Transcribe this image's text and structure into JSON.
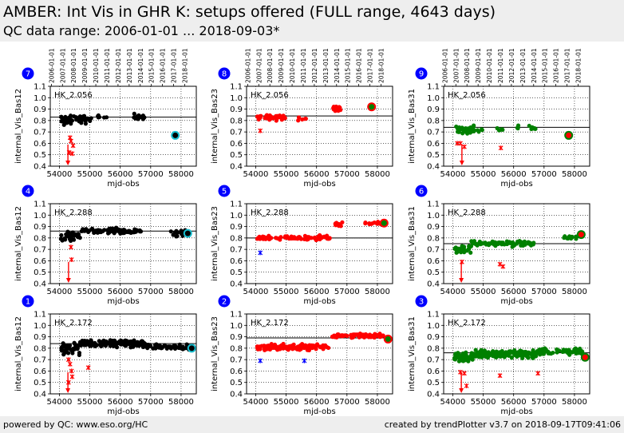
{
  "header": {
    "title": "AMBER: Int Vis in GHR K: setups offered (FULL range, 4643 days)",
    "subtitle": "QC data range: 2006-01-01 ... 2018-09-03*"
  },
  "footer": {
    "left": "powered by QC: www.eso.org/HC",
    "right": "created by trendPlotter v3.7 on 2018-09-17T09:41:06"
  },
  "colors": {
    "header_bg": "#eeeeee",
    "badge": "#0000ff",
    "base12": "#000000",
    "base23": "#ff0000",
    "base31": "#008000",
    "cyan_marker": "#17becf",
    "outlier_red": "#ff0000",
    "outlier_blue": "#0000ff"
  },
  "chart_data": {
    "type": "scatter",
    "x_label": "mjd-obs",
    "x_ticks": [
      54000,
      55000,
      56000,
      57000,
      58000
    ],
    "xlim": [
      53700,
      58500
    ],
    "ylim": [
      0.4,
      1.1
    ],
    "y_ticks": [
      "0.4",
      "0.5",
      "0.6",
      "0.7",
      "0.8",
      "0.9",
      "1.0",
      "1.1"
    ],
    "date_ticks": [
      {
        "label": "2006-01-01",
        "mjd": 53736
      },
      {
        "label": "2007-01-01",
        "mjd": 54101
      },
      {
        "label": "2008-01-01",
        "mjd": 54466
      },
      {
        "label": "2009-01-01",
        "mjd": 54832
      },
      {
        "label": "2010-01-01",
        "mjd": 55197
      },
      {
        "label": "2011-01-01",
        "mjd": 55562
      },
      {
        "label": "2012-01-01",
        "mjd": 55927
      },
      {
        "label": "2013-01-01",
        "mjd": 56293
      },
      {
        "label": "2014-01-01",
        "mjd": 56658
      },
      {
        "label": "2015-01-01",
        "mjd": 57023
      },
      {
        "label": "2016-01-01",
        "mjd": 57388
      },
      {
        "label": "2017-01-01",
        "mjd": 57754
      },
      {
        "label": "2018-01-01",
        "mjd": 58119
      }
    ],
    "grid": true,
    "panels": [
      {
        "row": 0,
        "col": 0,
        "badge": "7",
        "setup": "HK_2.056",
        "ylabel": "internal_Vis_Bas12",
        "color": "#000000",
        "refline": 0.83,
        "clusters": [
          {
            "x0": 54050,
            "x1": 55050,
            "ymid": 0.81,
            "spread": 0.05,
            "n": 60
          },
          {
            "x0": 55250,
            "x1": 55550,
            "ymid": 0.83,
            "spread": 0.02,
            "n": 6
          },
          {
            "x0": 56450,
            "x1": 56800,
            "ymid": 0.83,
            "spread": 0.03,
            "n": 14
          }
        ],
        "outliers": [
          {
            "x": 54350,
            "y": 0.65,
            "c": "#ff0000"
          },
          {
            "x": 54380,
            "y": 0.62,
            "c": "#ff0000"
          },
          {
            "x": 54450,
            "y": 0.58,
            "c": "#ff0000"
          },
          {
            "x": 54320,
            "y": 0.52,
            "c": "#ff0000"
          },
          {
            "x": 54420,
            "y": 0.51,
            "c": "#ff0000"
          }
        ],
        "below": [
          54280
        ],
        "last": {
          "x": 57810,
          "y": 0.67,
          "fill": "#000000",
          "ring": "#17becf"
        }
      },
      {
        "row": 0,
        "col": 1,
        "badge": "8",
        "setup": "HK_2.056",
        "ylabel": "internal_Vis_Bas23",
        "color": "#ff0000",
        "refline": 0.84,
        "clusters": [
          {
            "x0": 54050,
            "x1": 55000,
            "ymid": 0.83,
            "spread": 0.035,
            "n": 45
          },
          {
            "x0": 55350,
            "x1": 55650,
            "ymid": 0.81,
            "spread": 0.02,
            "n": 5
          },
          {
            "x0": 56550,
            "x1": 56800,
            "ymid": 0.9,
            "spread": 0.03,
            "n": 14
          }
        ],
        "outliers": [
          {
            "x": 54150,
            "y": 0.71,
            "c": "#ff0000"
          }
        ],
        "below": [],
        "last": {
          "x": 57810,
          "y": 0.92,
          "fill": "#008000",
          "ring": "#ff0000"
        }
      },
      {
        "row": 0,
        "col": 2,
        "badge": "9",
        "setup": "HK_2.056",
        "ylabel": "internal_Vis_Bas31",
        "color": "#008000",
        "refline": 0.74,
        "clusters": [
          {
            "x0": 54050,
            "x1": 55000,
            "ymid": 0.72,
            "spread": 0.04,
            "n": 40
          },
          {
            "x0": 55400,
            "x1": 55650,
            "ymid": 0.72,
            "spread": 0.02,
            "n": 5
          },
          {
            "x0": 56100,
            "x1": 56200,
            "ymid": 0.75,
            "spread": 0.02,
            "n": 3
          },
          {
            "x0": 56500,
            "x1": 56750,
            "ymid": 0.74,
            "spread": 0.03,
            "n": 8
          }
        ],
        "outliers": [
          {
            "x": 54150,
            "y": 0.6,
            "c": "#ff0000"
          },
          {
            "x": 54250,
            "y": 0.6,
            "c": "#ff0000"
          },
          {
            "x": 54380,
            "y": 0.57,
            "c": "#ff0000"
          },
          {
            "x": 55580,
            "y": 0.56,
            "c": "#ff0000"
          }
        ],
        "below": [
          54300
        ],
        "last": {
          "x": 57810,
          "y": 0.67,
          "fill": "#ff0000",
          "ring": "#008000"
        }
      },
      {
        "row": 1,
        "col": 0,
        "badge": "4",
        "setup": "HK_2.288",
        "ylabel": "internal_Vis_Bas12",
        "color": "#000000",
        "refline": 0.86,
        "clusters": [
          {
            "x0": 54050,
            "x1": 54700,
            "ymid": 0.82,
            "spread": 0.05,
            "n": 35
          },
          {
            "x0": 54700,
            "x1": 56700,
            "ymid": 0.86,
            "spread": 0.03,
            "n": 80
          },
          {
            "x0": 57650,
            "x1": 58200,
            "ymid": 0.84,
            "spread": 0.03,
            "n": 18
          }
        ],
        "outliers": [
          {
            "x": 54380,
            "y": 0.72,
            "c": "#ff0000"
          },
          {
            "x": 54400,
            "y": 0.61,
            "c": "#ff0000"
          }
        ],
        "below": [
          54300
        ],
        "last": {
          "x": 58220,
          "y": 0.84,
          "fill": "#000000",
          "ring": "#17becf"
        }
      },
      {
        "row": 1,
        "col": 1,
        "badge": "5",
        "setup": "HK_2.288",
        "ylabel": "internal_Vis_Bas23",
        "color": "#ff0000",
        "refline": 0.8,
        "clusters": [
          {
            "x0": 54050,
            "x1": 55500,
            "ymid": 0.8,
            "spread": 0.02,
            "n": 60
          },
          {
            "x0": 55500,
            "x1": 56500,
            "ymid": 0.8,
            "spread": 0.025,
            "n": 40
          },
          {
            "x0": 56600,
            "x1": 56900,
            "ymid": 0.92,
            "spread": 0.02,
            "n": 10
          },
          {
            "x0": 57600,
            "x1": 58150,
            "ymid": 0.93,
            "spread": 0.015,
            "n": 18
          }
        ],
        "outliers": [
          {
            "x": 54150,
            "y": 0.67,
            "c": "#0000ff"
          }
        ],
        "below": [],
        "last": {
          "x": 58220,
          "y": 0.93,
          "fill": "#008000",
          "ring": "#ff0000"
        }
      },
      {
        "row": 1,
        "col": 2,
        "badge": "6",
        "setup": "HK_2.288",
        "ylabel": "internal_Vis_Bas31",
        "color": "#008000",
        "refline": 0.75,
        "clusters": [
          {
            "x0": 54050,
            "x1": 54600,
            "ymid": 0.7,
            "spread": 0.04,
            "n": 25
          },
          {
            "x0": 54600,
            "x1": 56700,
            "ymid": 0.75,
            "spread": 0.03,
            "n": 70
          },
          {
            "x0": 57650,
            "x1": 58100,
            "ymid": 0.8,
            "spread": 0.02,
            "n": 15
          }
        ],
        "outliers": [
          {
            "x": 54300,
            "y": 0.59,
            "c": "#ff0000"
          },
          {
            "x": 55550,
            "y": 0.57,
            "c": "#ff0000"
          },
          {
            "x": 55650,
            "y": 0.55,
            "c": "#ff0000"
          }
        ],
        "below": [
          54280
        ],
        "last": {
          "x": 58220,
          "y": 0.83,
          "fill": "#ff0000",
          "ring": "#008000"
        }
      },
      {
        "row": 2,
        "col": 0,
        "badge": "1",
        "setup": "HK_2.172",
        "ylabel": "internal_Vis_Bas12",
        "color": "#000000",
        "refline": 0.84,
        "clusters": [
          {
            "x0": 54050,
            "x1": 54700,
            "ymid": 0.8,
            "spread": 0.06,
            "n": 50
          },
          {
            "x0": 54700,
            "x1": 56800,
            "ymid": 0.84,
            "spread": 0.035,
            "n": 140
          },
          {
            "x0": 56800,
            "x1": 58300,
            "ymid": 0.81,
            "spread": 0.03,
            "n": 60
          }
        ],
        "outliers": [
          {
            "x": 54300,
            "y": 0.7,
            "c": "#ff0000"
          },
          {
            "x": 54350,
            "y": 0.66,
            "c": "#ff0000"
          },
          {
            "x": 54400,
            "y": 0.6,
            "c": "#ff0000"
          },
          {
            "x": 54420,
            "y": 0.55,
            "c": "#ff0000"
          },
          {
            "x": 54300,
            "y": 0.5,
            "c": "#ff0000"
          },
          {
            "x": 54950,
            "y": 0.63,
            "c": "#ff0000"
          }
        ],
        "below": [
          54280
        ],
        "last": {
          "x": 58350,
          "y": 0.8,
          "fill": "#000000",
          "ring": "#17becf"
        }
      },
      {
        "row": 2,
        "col": 1,
        "badge": "2",
        "setup": "HK_2.172",
        "ylabel": "internal_Vis_Bas23",
        "color": "#ff0000",
        "refline": 0.89,
        "clusters": [
          {
            "x0": 54050,
            "x1": 56400,
            "ymid": 0.81,
            "spread": 0.03,
            "n": 140
          },
          {
            "x0": 56500,
            "x1": 58250,
            "ymid": 0.91,
            "spread": 0.02,
            "n": 80
          }
        ],
        "outliers": [
          {
            "x": 54150,
            "y": 0.69,
            "c": "#0000ff"
          },
          {
            "x": 55600,
            "y": 0.69,
            "c": "#0000ff"
          }
        ],
        "below": [],
        "last": {
          "x": 58350,
          "y": 0.88,
          "fill": "#008000",
          "ring": "#ff0000"
        }
      },
      {
        "row": 2,
        "col": 2,
        "badge": "3",
        "setup": "HK_2.172",
        "ylabel": "internal_Vis_Bas31",
        "color": "#008000",
        "refline": 0.76,
        "clusters": [
          {
            "x0": 54050,
            "x1": 54700,
            "ymid": 0.72,
            "spread": 0.05,
            "n": 50
          },
          {
            "x0": 54700,
            "x1": 56800,
            "ymid": 0.75,
            "spread": 0.04,
            "n": 140
          },
          {
            "x0": 56800,
            "x1": 58300,
            "ymid": 0.77,
            "spread": 0.035,
            "n": 60
          }
        ],
        "outliers": [
          {
            "x": 54250,
            "y": 0.59,
            "c": "#ff0000"
          },
          {
            "x": 54380,
            "y": 0.58,
            "c": "#ff0000"
          },
          {
            "x": 54450,
            "y": 0.47,
            "c": "#ff0000"
          },
          {
            "x": 55550,
            "y": 0.56,
            "c": "#ff0000"
          },
          {
            "x": 56800,
            "y": 0.58,
            "c": "#ff0000"
          }
        ],
        "below": [
          54280
        ],
        "last": {
          "x": 58350,
          "y": 0.72,
          "fill": "#ff0000",
          "ring": "#008000"
        }
      }
    ]
  }
}
